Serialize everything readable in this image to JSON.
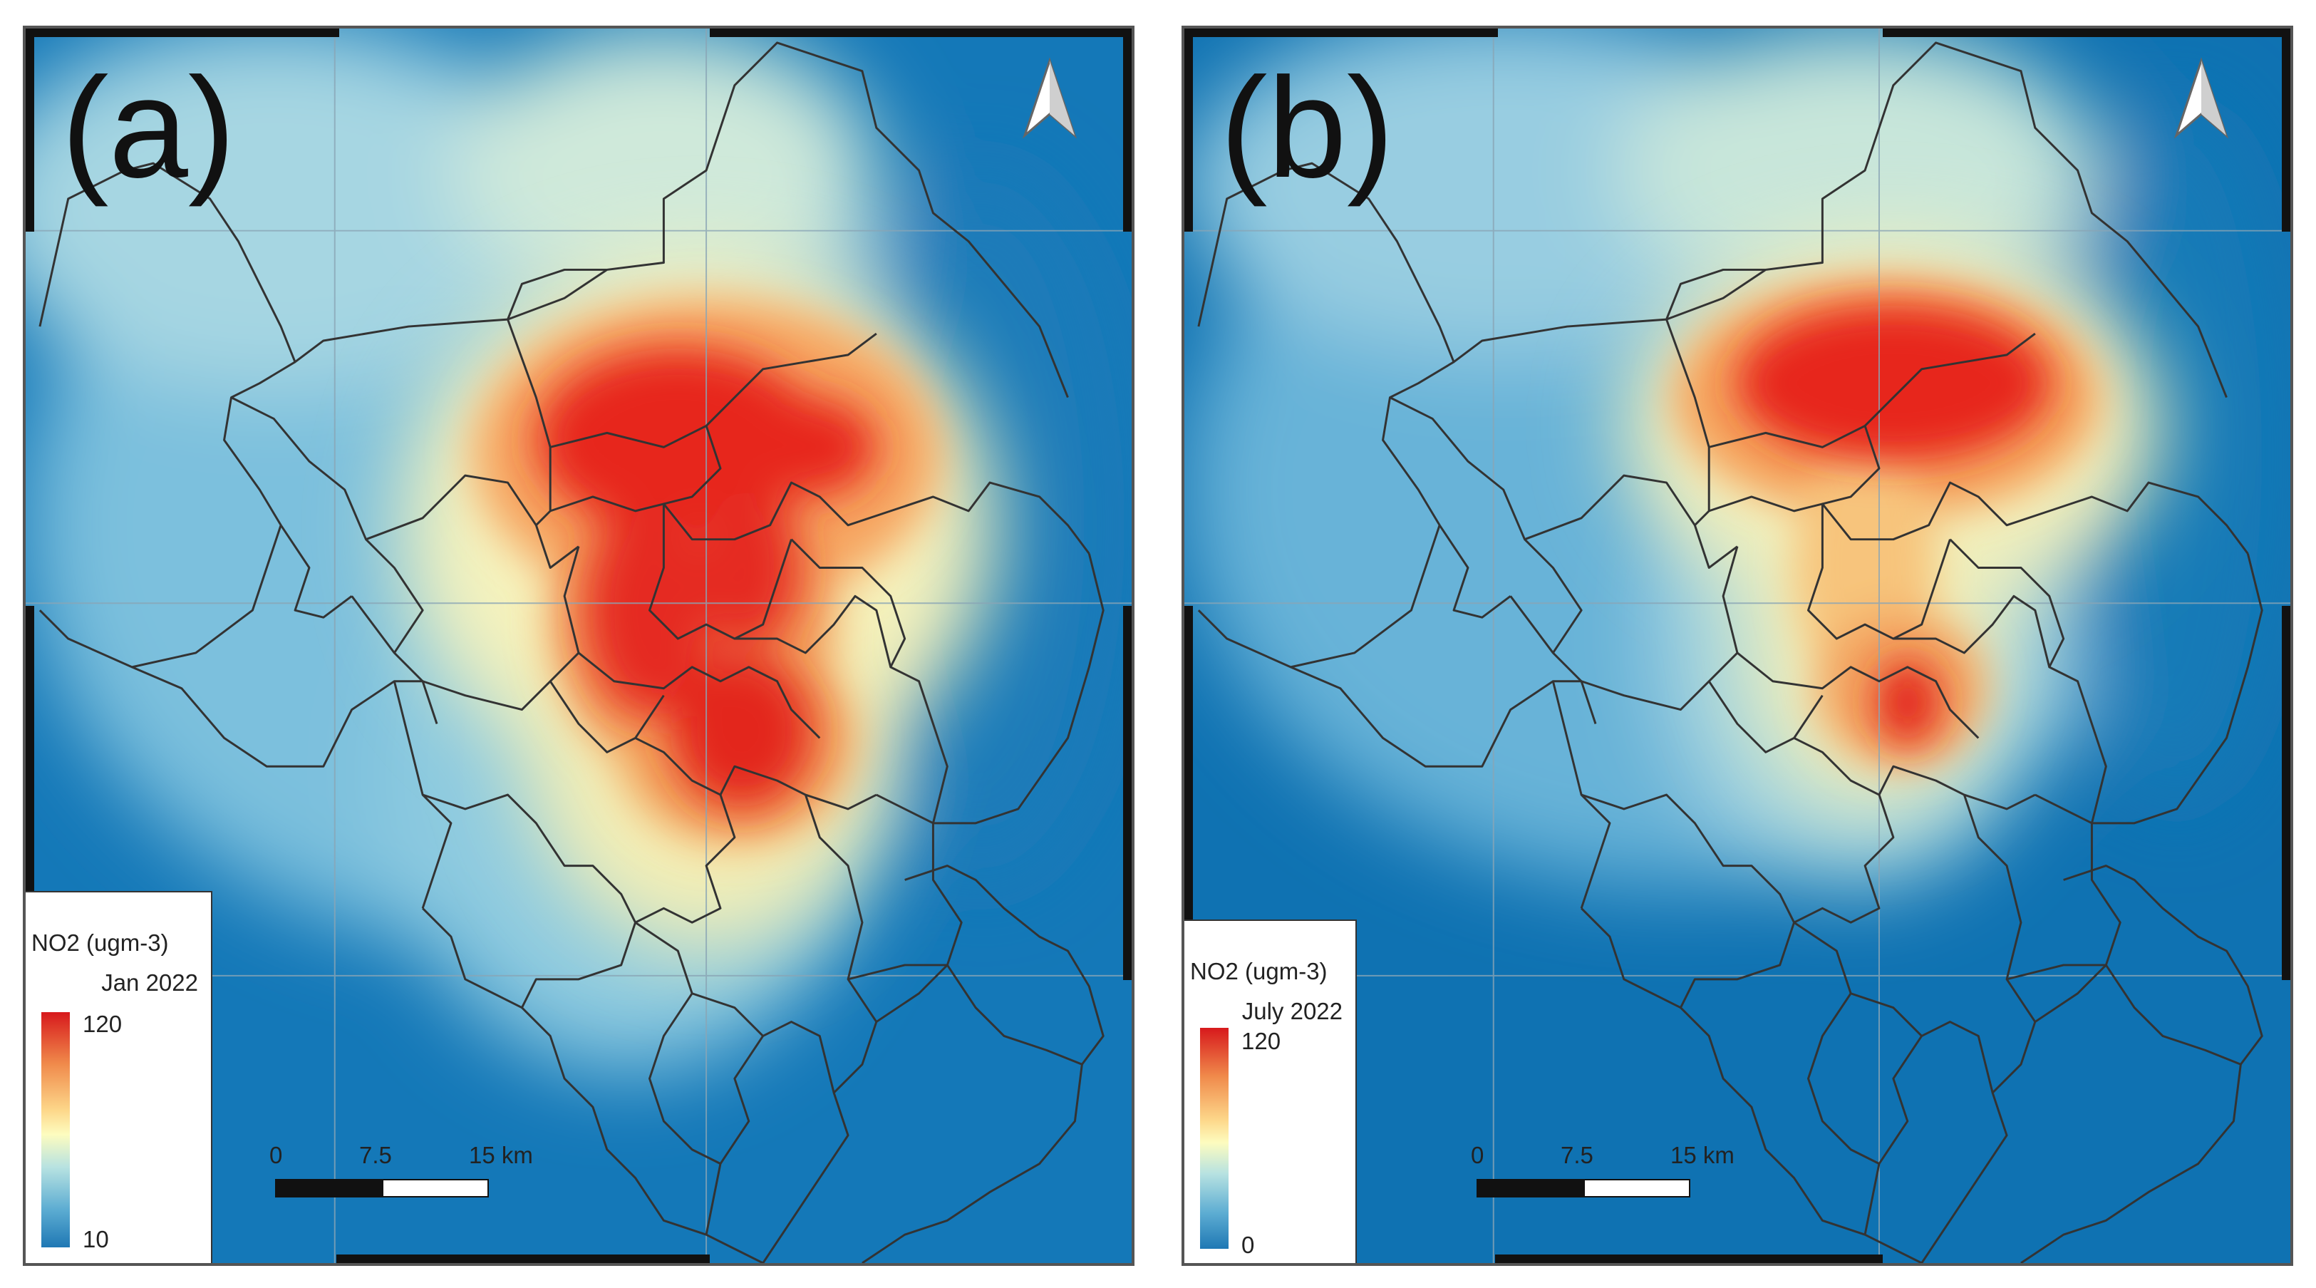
{
  "panels": [
    {
      "label": "(a)",
      "legend": {
        "title": "NO2 (ugm-3)",
        "period": "Jan 2022",
        "max": "120",
        "min": "10"
      },
      "scale": {
        "ticks": [
          "0",
          "7.5",
          "15 km"
        ]
      },
      "icons": {
        "north": "north-arrow-icon"
      }
    },
    {
      "label": "(b)",
      "legend": {
        "title": "NO2 (ugm-3)",
        "period": "July 2022",
        "max": "120",
        "min": "0"
      },
      "scale": {
        "ticks": [
          "0",
          "7.5",
          "15 km"
        ]
      },
      "icons": {
        "north": "north-arrow-icon"
      }
    }
  ],
  "colors": {
    "high": "#d7191c",
    "mid": "#fdfcbf",
    "low": "#0a6fae",
    "boundary": "#333333"
  }
}
